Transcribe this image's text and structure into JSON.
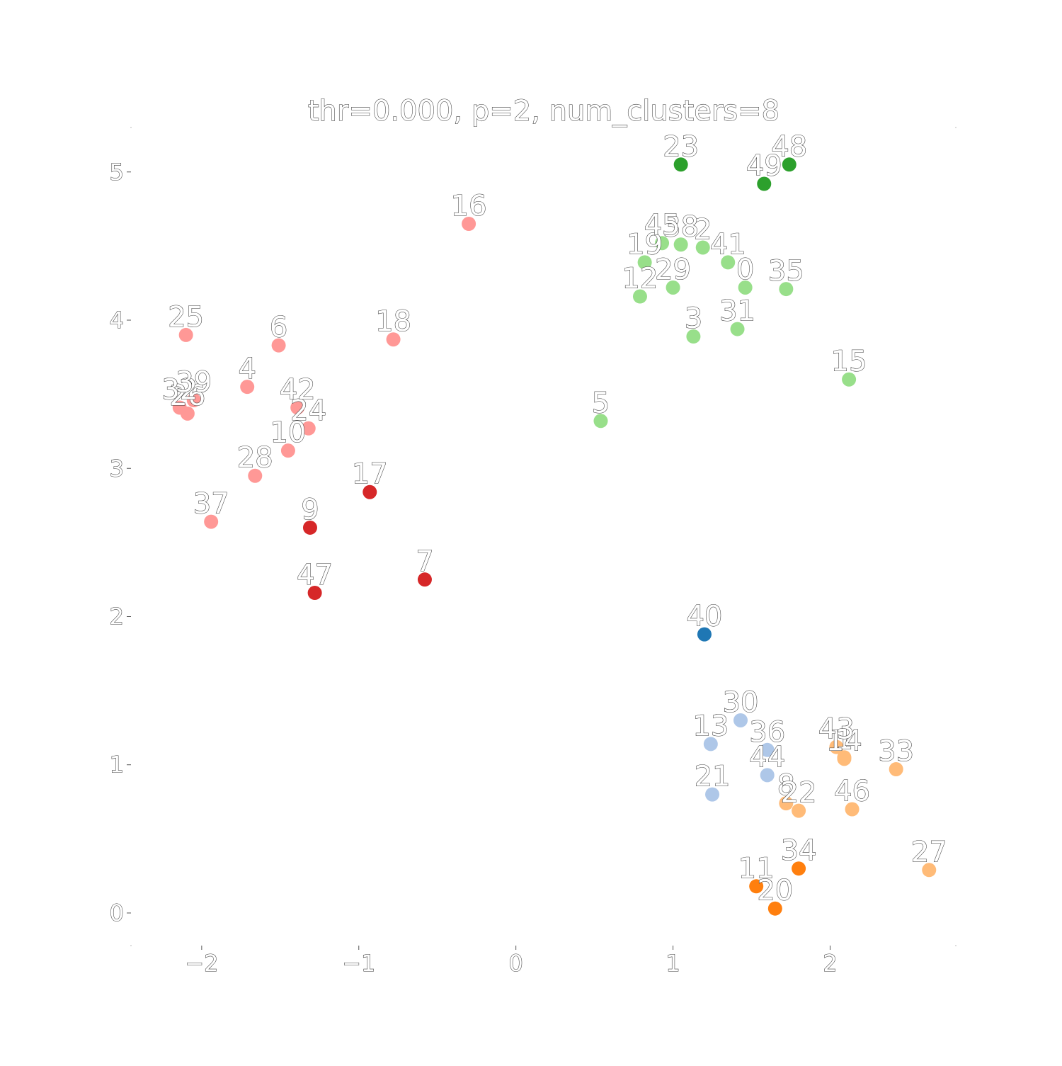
{
  "chart_data": {
    "type": "scatter",
    "title": "thr=0.000, p=2, num_clusters=8",
    "xlabel": "",
    "ylabel": "",
    "xlim": [
      -2.45,
      2.8
    ],
    "ylim": [
      -0.22,
      5.3
    ],
    "xticks": [
      -2,
      -1,
      0,
      1,
      2
    ],
    "yticks": [
      0,
      1,
      2,
      3,
      4,
      5
    ],
    "xtick_labels": [
      "−2",
      "−1",
      "0",
      "1",
      "2"
    ],
    "ytick_labels": [
      "0",
      "1",
      "2",
      "3",
      "4",
      "5"
    ],
    "grid": false,
    "legend": "none",
    "cluster_colors": [
      "#1f77b4",
      "#aec7e8",
      "#ff7f0e",
      "#ffbb78",
      "#2ca02c",
      "#98df8a",
      "#d62728",
      "#ff9896"
    ],
    "points": [
      {
        "label": "0",
        "x": 1.46,
        "y": 4.22,
        "cluster": 5
      },
      {
        "label": "1",
        "x": 2.09,
        "y": 1.05,
        "cluster": 3
      },
      {
        "label": "2",
        "x": 1.19,
        "y": 4.49,
        "cluster": 5
      },
      {
        "label": "3",
        "x": 1.13,
        "y": 3.89,
        "cluster": 5
      },
      {
        "label": "4",
        "x": -1.71,
        "y": 3.55,
        "cluster": 7
      },
      {
        "label": "5",
        "x": 0.54,
        "y": 3.32,
        "cluster": 5
      },
      {
        "label": "6",
        "x": -1.51,
        "y": 3.83,
        "cluster": 7
      },
      {
        "label": "7",
        "x": -0.58,
        "y": 2.25,
        "cluster": 6
      },
      {
        "label": "8",
        "x": 1.72,
        "y": 0.74,
        "cluster": 3
      },
      {
        "label": "9",
        "x": -1.31,
        "y": 2.6,
        "cluster": 6
      },
      {
        "label": "10",
        "x": -1.45,
        "y": 3.12,
        "cluster": 7
      },
      {
        "label": "11",
        "x": 1.53,
        "y": 0.18,
        "cluster": 2
      },
      {
        "label": "12",
        "x": 0.79,
        "y": 4.16,
        "cluster": 5
      },
      {
        "label": "13",
        "x": 1.24,
        "y": 1.14,
        "cluster": 1
      },
      {
        "label": "14",
        "x": 2.09,
        "y": 1.04,
        "cluster": 3
      },
      {
        "label": "15",
        "x": 2.12,
        "y": 3.6,
        "cluster": 5
      },
      {
        "label": "16",
        "x": -0.3,
        "y": 4.65,
        "cluster": 7
      },
      {
        "label": "17",
        "x": -0.93,
        "y": 2.84,
        "cluster": 6
      },
      {
        "label": "18",
        "x": -0.78,
        "y": 3.87,
        "cluster": 7
      },
      {
        "label": "19",
        "x": 0.82,
        "y": 4.39,
        "cluster": 5
      },
      {
        "label": "20",
        "x": 1.65,
        "y": 0.03,
        "cluster": 2
      },
      {
        "label": "21",
        "x": 1.25,
        "y": 0.8,
        "cluster": 1
      },
      {
        "label": "22",
        "x": 1.8,
        "y": 0.69,
        "cluster": 3
      },
      {
        "label": "23",
        "x": 1.05,
        "y": 5.05,
        "cluster": 4
      },
      {
        "label": "24",
        "x": -1.32,
        "y": 3.27,
        "cluster": 7
      },
      {
        "label": "25",
        "x": -2.1,
        "y": 3.9,
        "cluster": 7
      },
      {
        "label": "26",
        "x": -2.09,
        "y": 3.37,
        "cluster": 7
      },
      {
        "label": "27",
        "x": 2.63,
        "y": 0.29,
        "cluster": 3
      },
      {
        "label": "28",
        "x": -1.66,
        "y": 2.95,
        "cluster": 7
      },
      {
        "label": "29",
        "x": 1.0,
        "y": 4.22,
        "cluster": 5
      },
      {
        "label": "30",
        "x": 1.43,
        "y": 1.3,
        "cluster": 1
      },
      {
        "label": "31",
        "x": 1.41,
        "y": 3.94,
        "cluster": 5
      },
      {
        "label": "32",
        "x": -2.14,
        "y": 3.41,
        "cluster": 7
      },
      {
        "label": "33",
        "x": 2.42,
        "y": 0.97,
        "cluster": 3
      },
      {
        "label": "34",
        "x": 1.8,
        "y": 0.3,
        "cluster": 2
      },
      {
        "label": "35",
        "x": 1.72,
        "y": 4.21,
        "cluster": 5
      },
      {
        "label": "36",
        "x": 1.6,
        "y": 1.1,
        "cluster": 1
      },
      {
        "label": "37",
        "x": -1.94,
        "y": 2.64,
        "cluster": 7
      },
      {
        "label": "38",
        "x": 1.05,
        "y": 4.51,
        "cluster": 5
      },
      {
        "label": "39",
        "x": -2.05,
        "y": 3.46,
        "cluster": 7
      },
      {
        "label": "40",
        "x": 1.2,
        "y": 1.88,
        "cluster": 0
      },
      {
        "label": "41",
        "x": 1.35,
        "y": 4.39,
        "cluster": 5
      },
      {
        "label": "42",
        "x": -1.39,
        "y": 3.41,
        "cluster": 7
      },
      {
        "label": "43",
        "x": 2.04,
        "y": 1.12,
        "cluster": 3
      },
      {
        "label": "44",
        "x": 1.6,
        "y": 0.93,
        "cluster": 1
      },
      {
        "label": "45",
        "x": 0.93,
        "y": 4.52,
        "cluster": 5
      },
      {
        "label": "46",
        "x": 2.14,
        "y": 0.7,
        "cluster": 3
      },
      {
        "label": "47",
        "x": -1.28,
        "y": 2.16,
        "cluster": 6
      },
      {
        "label": "48",
        "x": 1.74,
        "y": 5.05,
        "cluster": 4
      },
      {
        "label": "49",
        "x": 1.58,
        "y": 4.92,
        "cluster": 4
      }
    ]
  }
}
